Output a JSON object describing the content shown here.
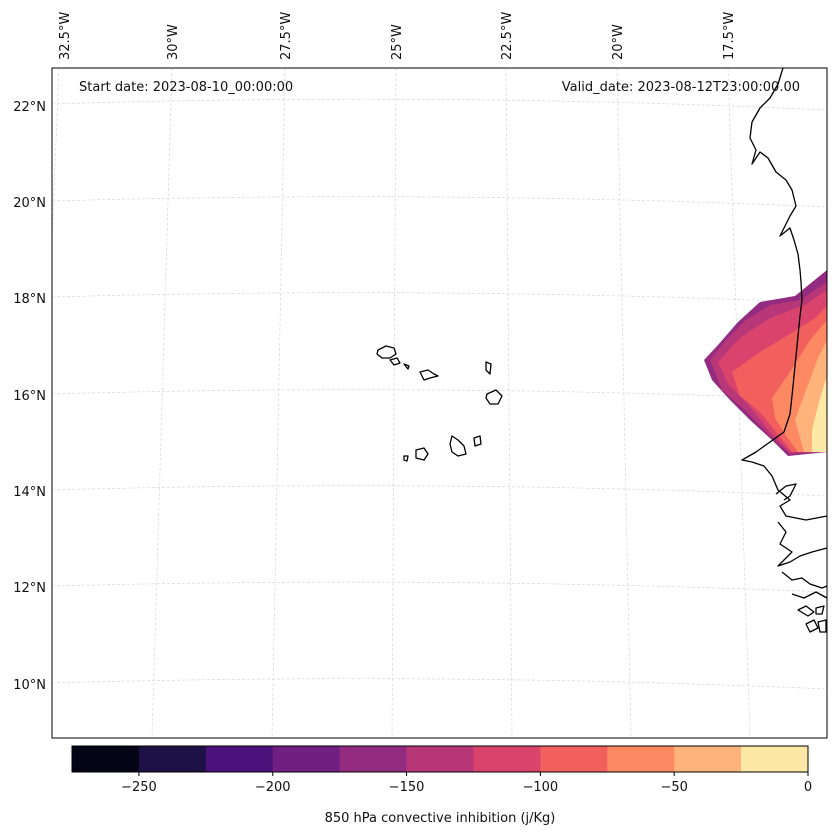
{
  "header": {
    "start_date": "Start date: 2023-08-10_00:00:00",
    "valid_date": "Valid_date: 2023-08-12T23:00:00.00"
  },
  "axes": {
    "longitude_labels": [
      "32.5°W",
      "30°W",
      "27.5°W",
      "25°W",
      "22.5°W",
      "20°W",
      "17.5°W"
    ],
    "latitude_labels": [
      "22°N",
      "20°N",
      "18°N",
      "16°N",
      "14°N",
      "12°N",
      "10°N"
    ]
  },
  "colorbar": {
    "label": "850 hPa convective inhibition (j/Kg)",
    "tick_labels": [
      "−250",
      "−200",
      "−150",
      "−100",
      "−50",
      "0"
    ],
    "range": [
      -275,
      0
    ],
    "colors": [
      "#050416",
      "#1d1146",
      "#4c117a",
      "#711f81",
      "#932b80",
      "#b73779",
      "#da446c",
      "#f1605d",
      "#fc8961",
      "#feb37b",
      "#fde9a5"
    ]
  },
  "map_colors": {
    "coastline": "#000000",
    "grid": "#d4d4d4",
    "frame": "#000000"
  }
}
